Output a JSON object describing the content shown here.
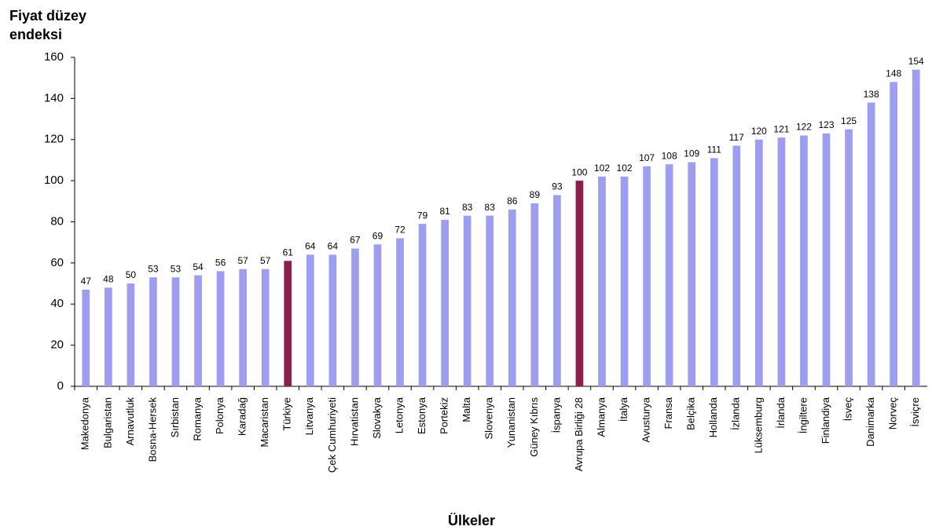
{
  "chart_data": {
    "type": "bar",
    "y_label": "Fiyat düzey endeksi",
    "x_label": "Ülkeler",
    "categories": [
      "Makedonya",
      "Bulgaristan",
      "Arnavutluk",
      "Bosna-Hersek",
      "Sırbistan",
      "Romanya",
      "Polonya",
      "Karadağ",
      "Macaristan",
      "Türkiye",
      "Litvanya",
      "Çek Cumhuriyeti",
      "Hırvatistan",
      "Slovakya",
      "Letonya",
      "Estonya",
      "Portekiz",
      "Malta",
      "Slovenya",
      "Yunanistan",
      "Güney Kıbrıs",
      "İspanya",
      "Avrupa Birliği 28",
      "Almanya",
      "İtalya",
      "Avusturya",
      "Fransa",
      "Belçika",
      "Hollanda",
      "İzlanda",
      "Lüksemburg",
      "İrlanda",
      "İngiltere",
      "Finlandiya",
      "İsveç",
      "Danimarka",
      "Norveç",
      "İsviçre"
    ],
    "values": [
      47,
      48,
      50,
      53,
      53,
      54,
      56,
      57,
      57,
      61,
      64,
      64,
      67,
      69,
      72,
      79,
      81,
      83,
      83,
      86,
      89,
      93,
      100,
      102,
      102,
      107,
      108,
      109,
      111,
      117,
      120,
      121,
      122,
      123,
      125,
      138,
      148,
      154
    ],
    "colors": [
      "#9e9ef0",
      "#9e9ef0",
      "#9e9ef0",
      "#9e9ef0",
      "#9e9ef0",
      "#9e9ef0",
      "#9e9ef0",
      "#9e9ef0",
      "#9e9ef0",
      "#8a1f4f",
      "#9e9ef0",
      "#9e9ef0",
      "#9e9ef0",
      "#9e9ef0",
      "#9e9ef0",
      "#9e9ef0",
      "#9e9ef0",
      "#9e9ef0",
      "#9e9ef0",
      "#9e9ef0",
      "#9e9ef0",
      "#9e9ef0",
      "#8a1f4f",
      "#9e9ef0",
      "#9e9ef0",
      "#9e9ef0",
      "#9e9ef0",
      "#9e9ef0",
      "#9e9ef0",
      "#9e9ef0",
      "#9e9ef0",
      "#9e9ef0",
      "#9e9ef0",
      "#9e9ef0",
      "#9e9ef0",
      "#9e9ef0",
      "#9e9ef0",
      "#9e9ef0"
    ],
    "ylim": [
      0,
      160
    ],
    "yticks": [
      0,
      20,
      40,
      60,
      80,
      100,
      120,
      140,
      160
    ]
  }
}
